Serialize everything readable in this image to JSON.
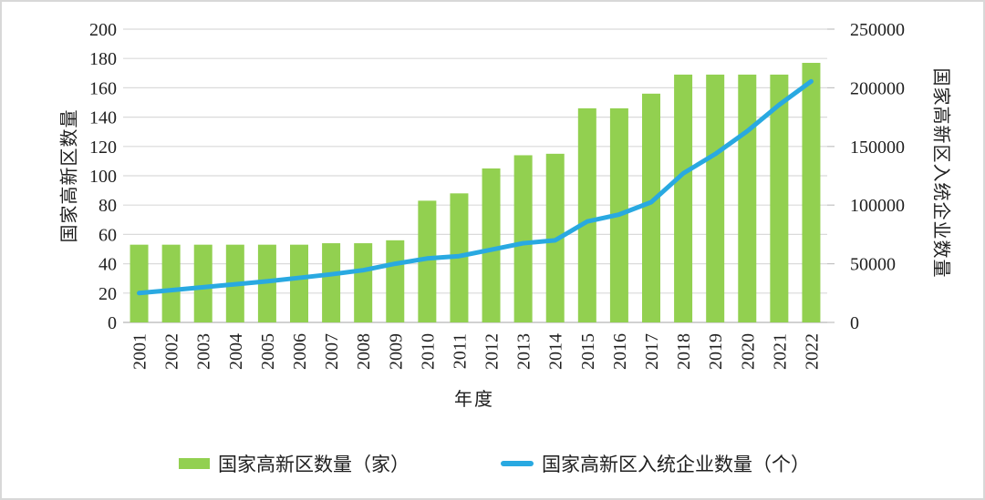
{
  "frame": {
    "background": "#ffffff",
    "border_color": "#d8d8d8"
  },
  "chart_data": {
    "type": "bar",
    "subtype": "combo-bar-line-dual-axis",
    "title": "",
    "categories": [
      "2001",
      "2002",
      "2003",
      "2004",
      "2005",
      "2006",
      "2007",
      "2008",
      "2009",
      "2010",
      "2011",
      "2012",
      "2013",
      "2014",
      "2015",
      "2016",
      "2017",
      "2018",
      "2019",
      "2020",
      "2021",
      "2022"
    ],
    "series": [
      {
        "name": "国家高新区数量（家）",
        "type": "bar",
        "axis": "left",
        "color": "#92d050",
        "values": [
          53,
          53,
          53,
          53,
          53,
          53,
          54,
          54,
          56,
          83,
          88,
          105,
          114,
          115,
          146,
          146,
          156,
          169,
          169,
          169,
          169,
          177
        ]
      },
      {
        "name": "国家高新区入统企业数量（个）",
        "type": "line",
        "axis": "right",
        "color": "#29a9e1",
        "values": [
          25000,
          27500,
          30000,
          32500,
          35000,
          38000,
          41000,
          44500,
          50000,
          54500,
          56500,
          62000,
          67500,
          70000,
          86000,
          92000,
          102500,
          127000,
          143500,
          163000,
          185500,
          205500
        ]
      }
    ],
    "left_axis": {
      "title": "国家高新区数量",
      "min": 0,
      "max": 200,
      "step": 20,
      "tick_labels": [
        "0",
        "20",
        "40",
        "60",
        "80",
        "100",
        "120",
        "140",
        "160",
        "180",
        "200"
      ]
    },
    "right_axis": {
      "title": "国家高新区入统企业数量",
      "min": 0,
      "max": 250000,
      "step": 50000,
      "tick_labels": [
        "0",
        "50000",
        "100000",
        "150000",
        "200000",
        "250000"
      ]
    },
    "x_axis": {
      "title": "年度"
    },
    "grid": true,
    "gridline_color": "#dadada",
    "baseline_color": "#c2c2c2",
    "legend_position": "bottom"
  }
}
